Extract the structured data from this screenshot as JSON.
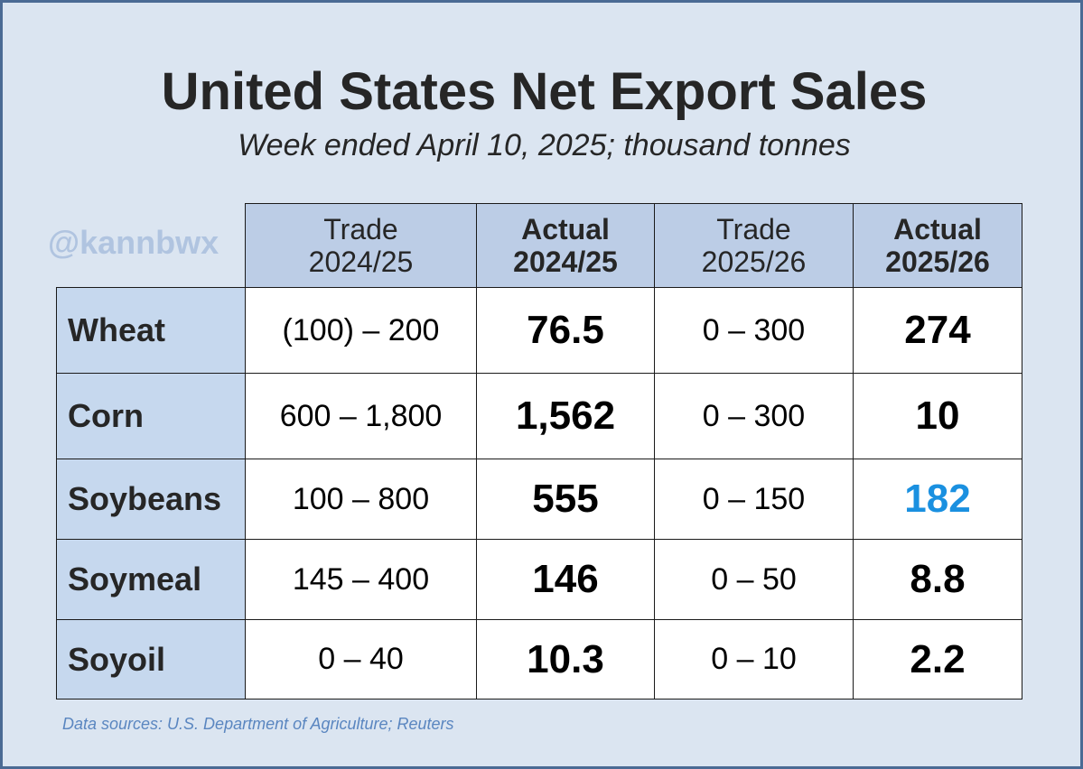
{
  "title": "United States Net Export Sales",
  "subtitle": "Week ended April 10, 2025; thousand tonnes",
  "watermark": "@kannbwx",
  "source": "Data sources: U.S. Department of Agriculture; Reuters",
  "colors": {
    "background": "#dbe5f1",
    "header_fill": "#bccde6",
    "row_label_fill": "#c6d8ee",
    "highlight": "#1a90e0",
    "border": "#4a6a94"
  },
  "chart_data": {
    "type": "table",
    "columns": [
      {
        "line1": "Trade",
        "line2": "2024/25",
        "kind": "trade"
      },
      {
        "line1": "Actual",
        "line2": "2024/25",
        "kind": "actual"
      },
      {
        "line1": "Trade",
        "line2": "2025/26",
        "kind": "trade"
      },
      {
        "line1": "Actual",
        "line2": "2025/26",
        "kind": "actual"
      }
    ],
    "rows": [
      {
        "label": "Wheat",
        "cells": [
          "(100) – 200",
          "76.5",
          "0 – 300",
          "274"
        ],
        "highlight": false
      },
      {
        "label": "Corn",
        "cells": [
          "600 – 1,800",
          "1,562",
          "0 – 300",
          "10"
        ],
        "highlight": false
      },
      {
        "label": "Soybeans",
        "cells": [
          "100 – 800",
          "555",
          "0 – 150",
          "182"
        ],
        "highlight": true
      },
      {
        "label": "Soymeal",
        "cells": [
          "145 – 400",
          "146",
          "0 – 50",
          "8.8"
        ],
        "highlight": false
      },
      {
        "label": "Soyoil",
        "cells": [
          "0 – 40",
          "10.3",
          "0 – 10",
          "2.2"
        ],
        "highlight": false
      }
    ]
  }
}
